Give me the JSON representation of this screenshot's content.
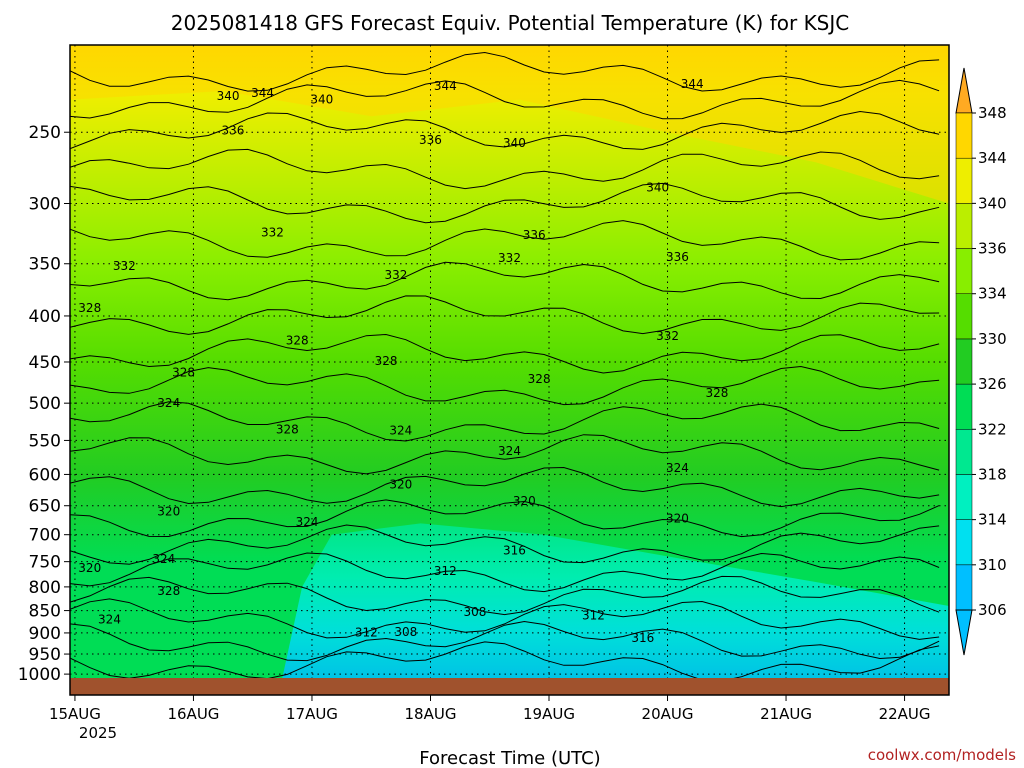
{
  "chart_data": {
    "type": "heatmap",
    "title": "2025081418 GFS Forecast Equiv. Potential Temperature (K) for KSJC",
    "xlabel": "Forecast Time (UTC)",
    "ylabel": "",
    "credit": "coolwx.com/models",
    "x_ticks": [
      "15AUG",
      "16AUG",
      "17AUG",
      "18AUG",
      "19AUG",
      "20AUG",
      "21AUG",
      "22AUG"
    ],
    "x_year_label": "2025",
    "x_range_hours_from_15AUG00": [
      -1,
      177
    ],
    "y_ticks_hpa": [
      250,
      300,
      350,
      400,
      450,
      500,
      550,
      600,
      650,
      700,
      750,
      800,
      850,
      900,
      950,
      1000
    ],
    "y_range_hpa": [
      200,
      1010
    ],
    "y_scale": "log",
    "colorbar": {
      "levels": [
        306,
        310,
        314,
        318,
        322,
        326,
        330,
        334,
        336,
        340,
        344,
        348
      ],
      "labels": [
        "306",
        "310",
        "314",
        "318",
        "322",
        "326",
        "330",
        "334",
        "336",
        "340",
        "344",
        "348"
      ],
      "colors": [
        "#00bfff",
        "#00e0f0",
        "#00f0c0",
        "#00e890",
        "#00dd55",
        "#22cc22",
        "#55dd00",
        "#88ee00",
        "#bbee00",
        "#eeee00",
        "#ffd700",
        "#ffaa22"
      ],
      "extend": "both"
    },
    "surface_color": "#a0522d",
    "contour_interval_k": 2,
    "contour_labels": [
      {
        "hour": 3,
        "hpa": 762,
        "value": "320"
      },
      {
        "hour": 7,
        "hpa": 870,
        "value": "324"
      },
      {
        "hour": 3,
        "hpa": 392,
        "value": "328"
      },
      {
        "hour": 10,
        "hpa": 352,
        "value": "332"
      },
      {
        "hour": 19,
        "hpa": 500,
        "value": "324"
      },
      {
        "hour": 22,
        "hpa": 462,
        "value": "328"
      },
      {
        "hour": 19,
        "hpa": 660,
        "value": "320"
      },
      {
        "hour": 18,
        "hpa": 745,
        "value": "324"
      },
      {
        "hour": 19,
        "hpa": 808,
        "value": "328"
      },
      {
        "hour": 31,
        "hpa": 228,
        "value": "340"
      },
      {
        "hour": 32,
        "hpa": 249,
        "value": "336"
      },
      {
        "hour": 38,
        "hpa": 226,
        "value": "344"
      },
      {
        "hour": 40,
        "hpa": 323,
        "value": "332"
      },
      {
        "hour": 45,
        "hpa": 426,
        "value": "328"
      },
      {
        "hour": 43,
        "hpa": 535,
        "value": "328"
      },
      {
        "hour": 47,
        "hpa": 678,
        "value": "324"
      },
      {
        "hour": 50,
        "hpa": 230,
        "value": "340"
      },
      {
        "hour": 59,
        "hpa": 899,
        "value": "312"
      },
      {
        "hour": 67,
        "hpa": 898,
        "value": "308"
      },
      {
        "hour": 63,
        "hpa": 449,
        "value": "328"
      },
      {
        "hour": 65,
        "hpa": 360,
        "value": "332"
      },
      {
        "hour": 72,
        "hpa": 255,
        "value": "336"
      },
      {
        "hour": 66,
        "hpa": 536,
        "value": "324"
      },
      {
        "hour": 66,
        "hpa": 616,
        "value": "320"
      },
      {
        "hour": 75,
        "hpa": 222,
        "value": "344"
      },
      {
        "hour": 75,
        "hpa": 768,
        "value": "312"
      },
      {
        "hour": 81,
        "hpa": 853,
        "value": "308"
      },
      {
        "hour": 89,
        "hpa": 257,
        "value": "340"
      },
      {
        "hour": 93,
        "hpa": 325,
        "value": "336"
      },
      {
        "hour": 88,
        "hpa": 345,
        "value": "332"
      },
      {
        "hour": 94,
        "hpa": 470,
        "value": "328"
      },
      {
        "hour": 88,
        "hpa": 565,
        "value": "324"
      },
      {
        "hour": 91,
        "hpa": 642,
        "value": "320"
      },
      {
        "hour": 89,
        "hpa": 729,
        "value": "316"
      },
      {
        "hour": 105,
        "hpa": 861,
        "value": "312"
      },
      {
        "hour": 125,
        "hpa": 221,
        "value": "344"
      },
      {
        "hour": 118,
        "hpa": 288,
        "value": "340"
      },
      {
        "hour": 122,
        "hpa": 344,
        "value": "336"
      },
      {
        "hour": 120,
        "hpa": 421,
        "value": "332"
      },
      {
        "hour": 130,
        "hpa": 487,
        "value": "328"
      },
      {
        "hour": 122,
        "hpa": 590,
        "value": "324"
      },
      {
        "hour": 122,
        "hpa": 672,
        "value": "320"
      },
      {
        "hour": 115,
        "hpa": 912,
        "value": "316"
      }
    ]
  }
}
